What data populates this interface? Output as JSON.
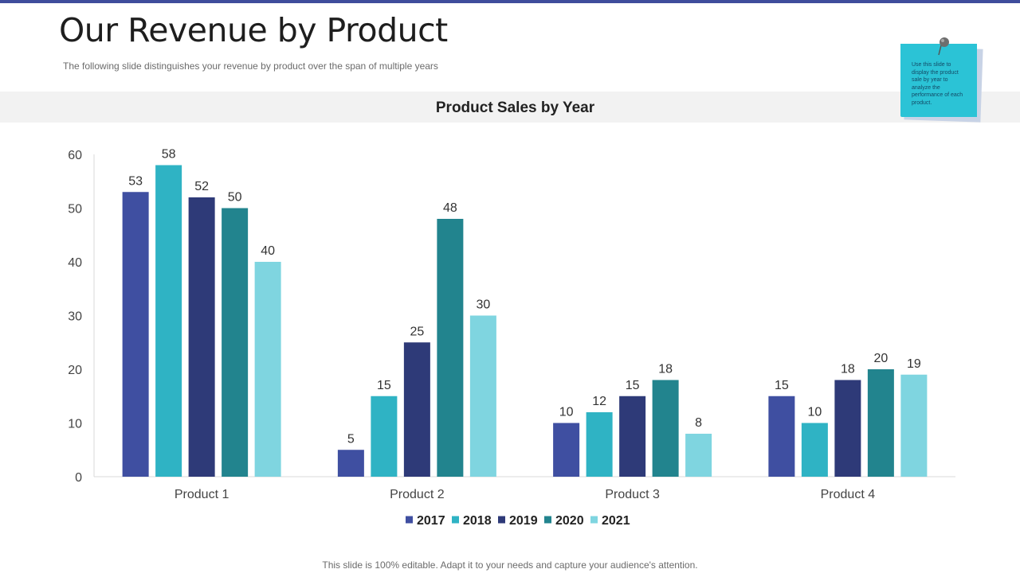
{
  "slide": {
    "title": "Our Revenue by Product",
    "subtitle": "The following slide distinguishes your revenue  by product over the span of multiple years",
    "footer": "This slide is 100% editable. Adapt it to your needs and capture your audience's attention."
  },
  "note": {
    "text": "Use this slide to display the product sale by year to analyze the performance of each product."
  },
  "colors": {
    "accent_bar": "#3f4d9c",
    "series": [
      "#3f4fa1",
      "#2fb3c4",
      "#2e3a78",
      "#22848e",
      "#7fd5e0"
    ]
  },
  "chart_data": {
    "type": "bar",
    "title": "Product Sales by Year",
    "xlabel": "",
    "ylabel": "",
    "categories": [
      "Product 1",
      "Product 2",
      "Product 3",
      "Product 4"
    ],
    "series": [
      {
        "name": "2017",
        "values": [
          53,
          5,
          10,
          15
        ]
      },
      {
        "name": "2018",
        "values": [
          58,
          15,
          12,
          10
        ]
      },
      {
        "name": "2019",
        "values": [
          52,
          25,
          15,
          18
        ]
      },
      {
        "name": "2020",
        "values": [
          50,
          48,
          18,
          20
        ]
      },
      {
        "name": "2021",
        "values": [
          40,
          30,
          8,
          19
        ]
      }
    ],
    "ylim": [
      0,
      60
    ],
    "yticks": [
      0,
      10,
      20,
      30,
      40,
      50,
      60
    ],
    "grid": false,
    "data_labels": true,
    "legend_position": "bottom"
  }
}
